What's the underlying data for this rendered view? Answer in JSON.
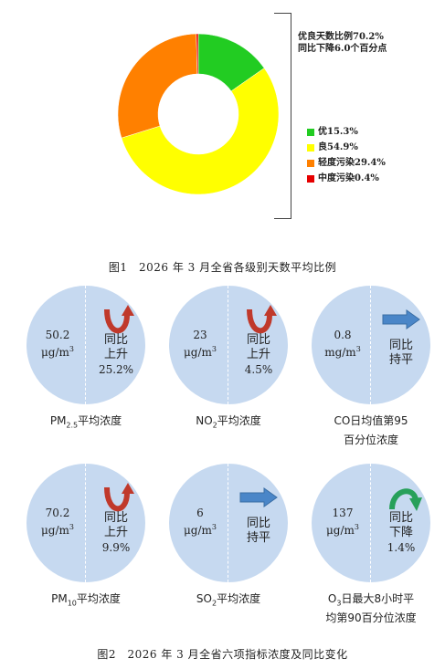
{
  "chart_data": {
    "type": "pie",
    "categories": [
      "优",
      "良",
      "轻度污染",
      "中度污染"
    ],
    "values": [
      15.3,
      54.9,
      29.4,
      0.4
    ],
    "colors": [
      "#22cc22",
      "#ffff00",
      "#ff8000",
      "#e60000"
    ],
    "title": "图1　2026 年 3 月全省各级别天数平均比例"
  },
  "summary": {
    "line1": "优良天数比例70.2%",
    "line2": "同比下降6.0个百分点"
  },
  "legend": [
    {
      "label": "优15.3%",
      "color": "#22cc22"
    },
    {
      "label": "良54.9%",
      "color": "#ffff00"
    },
    {
      "label": "轻度污染29.4%",
      "color": "#ff8000"
    },
    {
      "label": "中度污染0.4%",
      "color": "#e60000"
    }
  ],
  "figure1_caption": "图1　2026 年 3 月全省各级别天数平均比例",
  "figure2_caption": "图2　2026 年 3 月全省六项指标浓度及同比变化",
  "indicators": [
    {
      "value": "50.2",
      "unit": "μg/m",
      "unit_sup": "3",
      "trend_line1": "同比",
      "trend_line2": "上升",
      "change": "25.2%",
      "trend_icon": "u-turn-up-arrow-icon",
      "trend_color": "#c0392b",
      "name_pre": "PM",
      "name_sub": "2.5",
      "name_post": "平均浓度",
      "name_line2": ""
    },
    {
      "value": "23",
      "unit": "μg/m",
      "unit_sup": "3",
      "trend_line1": "同比",
      "trend_line2": "上升",
      "change": "4.5%",
      "trend_icon": "u-turn-up-arrow-icon",
      "trend_color": "#c0392b",
      "name_pre": "NO",
      "name_sub": "2",
      "name_post": "平均浓度",
      "name_line2": ""
    },
    {
      "value": "0.8",
      "unit": "mg/m",
      "unit_sup": "3",
      "trend_line1": "同比",
      "trend_line2": "持平",
      "change": "",
      "trend_icon": "right-arrow-icon",
      "trend_color": "#4a86c8",
      "name_pre": "CO日均值第95",
      "name_sub": "",
      "name_post": "",
      "name_line2": "百分位浓度"
    },
    {
      "value": "70.2",
      "unit": "μg/m",
      "unit_sup": "3",
      "trend_line1": "同比",
      "trend_line2": "上升",
      "change": "9.9%",
      "trend_icon": "u-turn-up-arrow-icon",
      "trend_color": "#c0392b",
      "name_pre": "PM",
      "name_sub": "10",
      "name_post": "平均浓度",
      "name_line2": ""
    },
    {
      "value": "6",
      "unit": "μg/m",
      "unit_sup": "3",
      "trend_line1": "同比",
      "trend_line2": "持平",
      "change": "",
      "trend_icon": "right-arrow-icon",
      "trend_color": "#4a86c8",
      "name_pre": "SO",
      "name_sub": "2",
      "name_post": "平均浓度",
      "name_line2": ""
    },
    {
      "value": "137",
      "unit": "μg/m",
      "unit_sup": "3",
      "trend_line1": "同比",
      "trend_line2": "下降",
      "change": "1.4%",
      "trend_icon": "curved-down-arrow-icon",
      "trend_color": "#27a05a",
      "name_pre": "O",
      "name_sub": "3",
      "name_post": "日最大8小时平",
      "name_line2": "均第90百分位浓度"
    }
  ]
}
